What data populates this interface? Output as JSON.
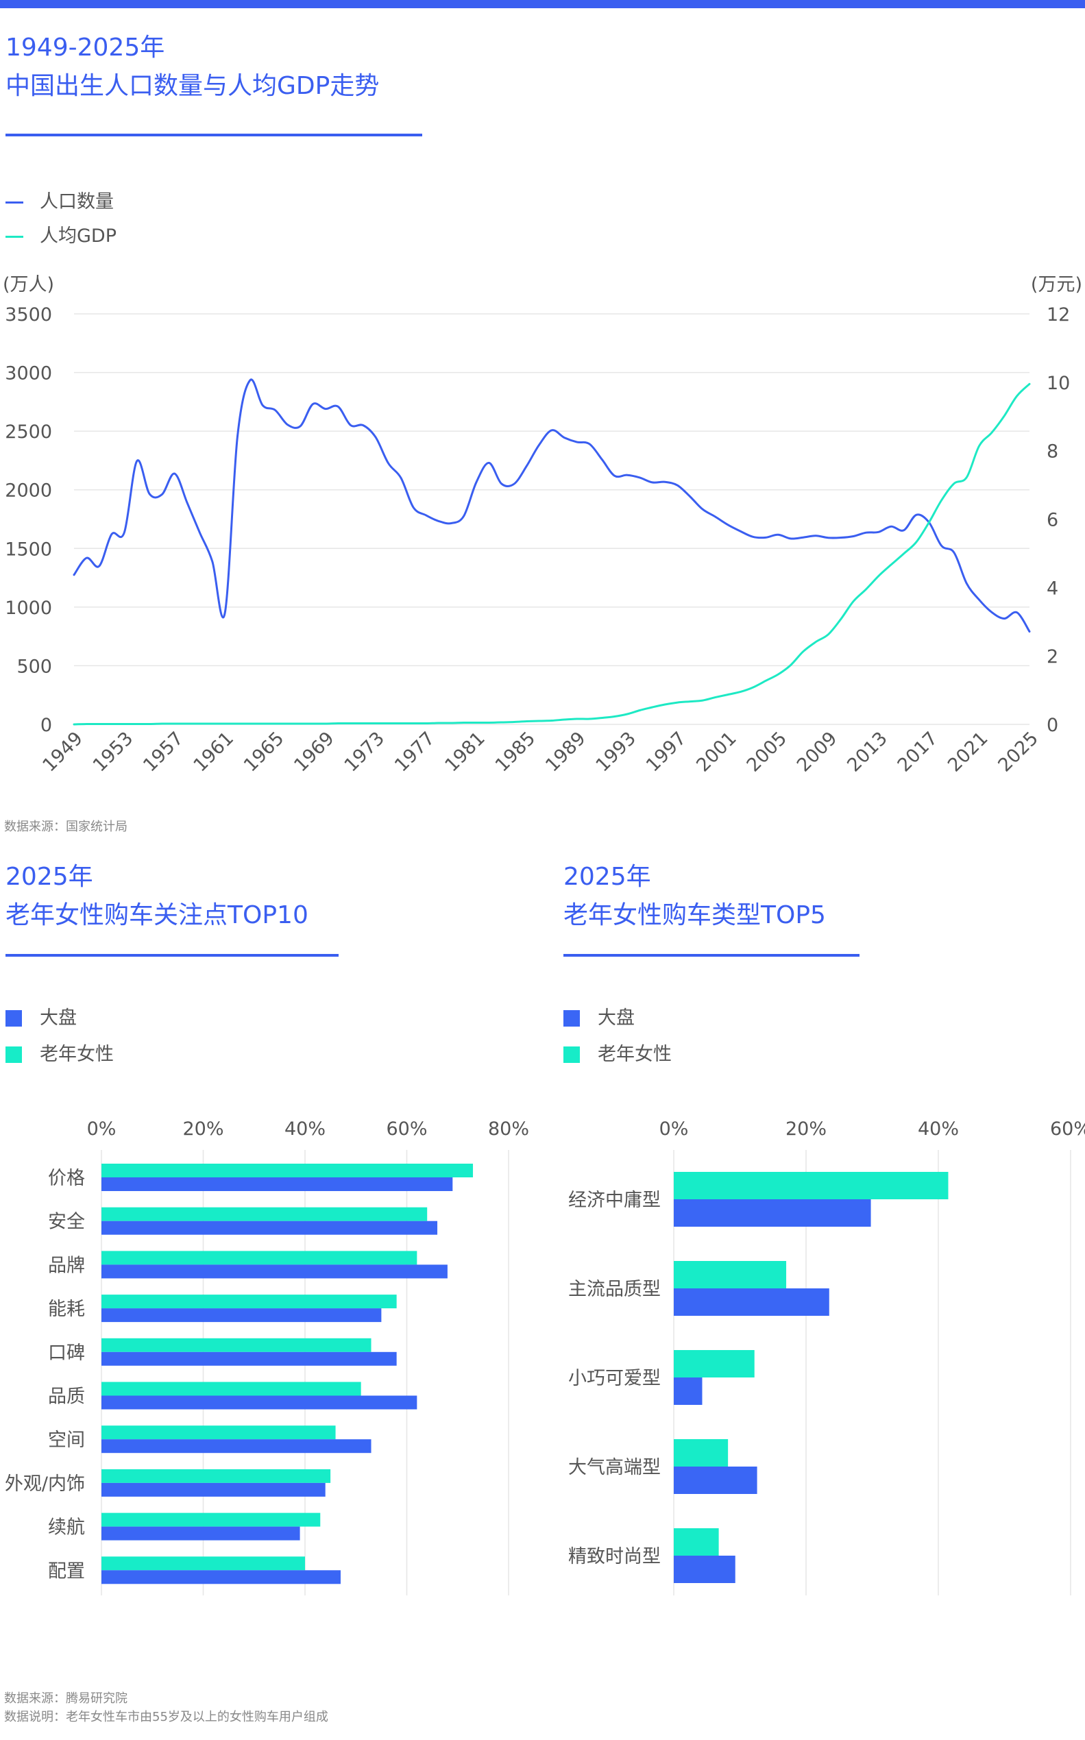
{
  "colors": {
    "accent": "#3a5ef0",
    "population": "#3a5ef0",
    "gdp": "#1de9c4",
    "overall": "#3a66f5",
    "elderly": "#17ecc8"
  },
  "line_chart": {
    "title_line1": "1949-2025年",
    "title_line2": "中国出生人口数量与人均GDP走势",
    "legend_population": "人口数量",
    "legend_gdp": "人均GDP",
    "source": "数据来源：国家统计局"
  },
  "bar_chart_left": {
    "title_line1": "2025年",
    "title_line2": "老年女性购车关注点TOP10",
    "legend_overall": "大盘",
    "legend_elderly": "老年女性"
  },
  "bar_chart_right": {
    "title_line1": "2025年",
    "title_line2": "老年女性购车类型TOP5",
    "legend_overall": "大盘",
    "legend_elderly": "老年女性"
  },
  "footer": {
    "source": "数据来源：腾易研究院",
    "note": "数据说明：老年女性车市由55岁及以上的女性购车用户组成"
  },
  "chart_data": [
    {
      "type": "line",
      "title": "1949-2025年 中国出生人口数量与人均GDP走势",
      "y_left_label": "(万人)",
      "y_right_label": "(万元)",
      "y_left_range": [
        0,
        3500
      ],
      "y_left_ticks": [
        "3500",
        "3000",
        "2500",
        "2000",
        "1500",
        "1000",
        "500",
        "0"
      ],
      "y_right_range": [
        0,
        12
      ],
      "y_right_ticks": [
        "12",
        "10",
        "8",
        "6",
        "4",
        "2",
        "0"
      ],
      "x_ticks": [
        "1949",
        "1953",
        "1957",
        "1961",
        "1965",
        "1969",
        "1973",
        "1977",
        "1981",
        "1985",
        "1989",
        "1993",
        "1997",
        "2001",
        "2005",
        "2009",
        "2013",
        "2017",
        "2021",
        "2025"
      ],
      "x": [
        1949,
        1950,
        1951,
        1952,
        1953,
        1954,
        1955,
        1956,
        1957,
        1958,
        1959,
        1960,
        1961,
        1962,
        1963,
        1964,
        1965,
        1966,
        1967,
        1968,
        1969,
        1970,
        1971,
        1972,
        1973,
        1974,
        1975,
        1976,
        1977,
        1978,
        1979,
        1980,
        1981,
        1982,
        1983,
        1984,
        1985,
        1986,
        1987,
        1988,
        1989,
        1990,
        1991,
        1992,
        1993,
        1994,
        1995,
        1996,
        1997,
        1998,
        1999,
        2000,
        2001,
        2002,
        2003,
        2004,
        2005,
        2006,
        2007,
        2008,
        2009,
        2010,
        2011,
        2012,
        2013,
        2014,
        2015,
        2016,
        2017,
        2018,
        2019,
        2020,
        2021,
        2022,
        2023,
        2024,
        2025
      ],
      "series": [
        {
          "name": "人口数量",
          "axis": "left",
          "values": [
            1275,
            1419,
            1349,
            1622,
            1637,
            2245,
            1965,
            1961,
            2138,
            1889,
            1635,
            1389,
            949,
            2451,
            2934,
            2721,
            2679,
            2554,
            2543,
            2731,
            2690,
            2710,
            2551,
            2550,
            2447,
            2226,
            2102,
            1849,
            1783,
            1733,
            1715,
            1776,
            2064,
            2230,
            2052,
            2050,
            2202,
            2384,
            2508,
            2445,
            2407,
            2391,
            2258,
            2119,
            2126,
            2104,
            2063,
            2067,
            2038,
            1942,
            1834,
            1771,
            1702,
            1647,
            1599,
            1593,
            1617,
            1584,
            1594,
            1608,
            1591,
            1592,
            1604,
            1635,
            1640,
            1687,
            1655,
            1786,
            1723,
            1523,
            1465,
            1202,
            1062,
            956,
            902,
            954,
            792
          ]
        },
        {
          "name": "人均GDP",
          "axis": "right",
          "values": [
            0.0,
            0.01,
            0.01,
            0.01,
            0.01,
            0.01,
            0.01,
            0.02,
            0.02,
            0.02,
            0.02,
            0.02,
            0.02,
            0.02,
            0.02,
            0.02,
            0.02,
            0.02,
            0.02,
            0.02,
            0.02,
            0.03,
            0.03,
            0.03,
            0.03,
            0.03,
            0.03,
            0.03,
            0.03,
            0.04,
            0.04,
            0.05,
            0.05,
            0.05,
            0.06,
            0.07,
            0.09,
            0.1,
            0.11,
            0.14,
            0.16,
            0.16,
            0.19,
            0.23,
            0.3,
            0.41,
            0.5,
            0.58,
            0.64,
            0.67,
            0.7,
            0.79,
            0.87,
            0.95,
            1.08,
            1.27,
            1.46,
            1.73,
            2.13,
            2.41,
            2.63,
            3.08,
            3.6,
            3.95,
            4.34,
            4.67,
            4.99,
            5.33,
            5.9,
            6.55,
            7.04,
            7.22,
            8.14,
            8.53,
            9.02,
            9.6,
            9.95
          ]
        }
      ]
    },
    {
      "type": "bar",
      "orientation": "horizontal",
      "title": "2025年 老年女性购车关注点TOP10",
      "xlim": [
        0,
        80
      ],
      "x_ticks": [
        "0%",
        "20%",
        "40%",
        "60%",
        "80%"
      ],
      "categories": [
        "价格",
        "安全",
        "品牌",
        "能耗",
        "口碑",
        "品质",
        "空间",
        "外观/内饰",
        "续航",
        "配置"
      ],
      "series": [
        {
          "name": "老年女性",
          "values": [
            73,
            64,
            62,
            58,
            53,
            51,
            46,
            45,
            43,
            40
          ]
        },
        {
          "name": "大盘",
          "values": [
            69,
            66,
            68,
            55,
            58,
            62,
            53,
            44,
            39,
            47
          ]
        }
      ]
    },
    {
      "type": "bar",
      "orientation": "horizontal",
      "title": "2025年 老年女性购车类型TOP5",
      "xlim": [
        0,
        60
      ],
      "x_ticks": [
        "0%",
        "20%",
        "40%",
        "60%"
      ],
      "categories": [
        "经济中庸型",
        "主流品质型",
        "小巧可爱型",
        "大气高端型",
        "精致时尚型"
      ],
      "series": [
        {
          "name": "老年女性",
          "values": [
            41.5,
            17,
            12.2,
            8.2,
            6.8
          ]
        },
        {
          "name": "大盘",
          "values": [
            29.8,
            23.5,
            4.3,
            12.6,
            9.3
          ]
        }
      ]
    }
  ]
}
